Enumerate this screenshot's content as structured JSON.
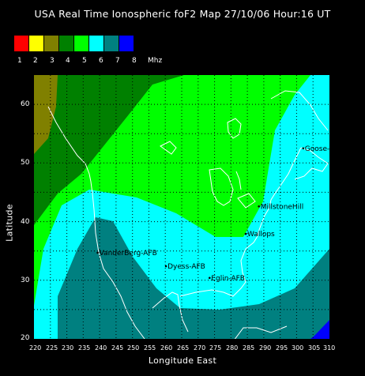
{
  "title": "USA Real Time Ionospheric foF2 Map  27/10/06 Hour:16 UT",
  "legend": {
    "colors": [
      "#ff0000",
      "#ffff00",
      "#808000",
      "#008000",
      "#00ff00",
      "#00ffff",
      "#008080",
      "#0000ff"
    ],
    "labels": [
      "1",
      "2",
      "3",
      "4",
      "5",
      "6",
      "7",
      "8"
    ],
    "units": "Mhz"
  },
  "axes": {
    "xlabel": "Longitude East",
    "ylabel": "Latitude",
    "xticks": [
      "220",
      "225",
      "230",
      "235",
      "240",
      "245",
      "250",
      "255",
      "260",
      "265",
      "270",
      "275",
      "280",
      "285",
      "290",
      "295",
      "300",
      "305",
      "310"
    ],
    "yticks": [
      "60",
      "50",
      "40",
      "30",
      "20"
    ],
    "xrange": [
      220,
      310
    ],
    "yrange": [
      20,
      65
    ]
  },
  "stations": [
    {
      "name": "Goose-B",
      "lon": 302,
      "lat": 52.5
    },
    {
      "name": "MillstoneHill",
      "lon": 288.5,
      "lat": 42.6
    },
    {
      "name": "Wallops",
      "lon": 284.5,
      "lat": 37.9
    },
    {
      "name": "VanderBerg-AFB",
      "lon": 239.4,
      "lat": 34.7
    },
    {
      "name": "Dyess-AFB",
      "lon": 260.2,
      "lat": 32.4
    },
    {
      "name": "Eglin-AFB",
      "lon": 273.5,
      "lat": 30.4
    }
  ]
}
